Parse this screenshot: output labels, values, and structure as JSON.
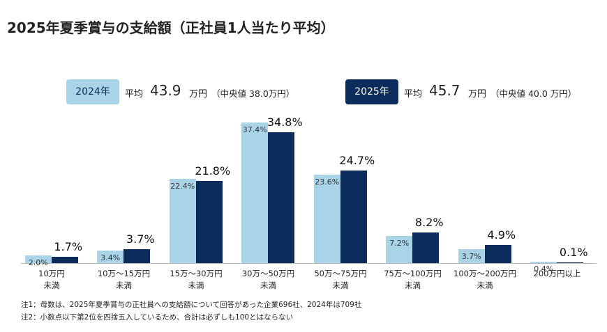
{
  "chart_data": {
    "type": "bar",
    "title": "2025年夏季賞与の支給額（正社員1人当たり平均）",
    "categories": [
      "10万円\n未満",
      "10万～15万円\n未満",
      "15万～30万円\n未満",
      "30万～50万円\n未満",
      "50万～75万円\n未満",
      "75万～100万円\n未満",
      "100万～200万円\n未満",
      "200万円以上"
    ],
    "series": [
      {
        "name": "2024年",
        "color": "#a9d3e7",
        "mean_prefix": "平均",
        "mean": "43.9",
        "mean_unit": "万円",
        "median_note": "（中央値 38.0万円）",
        "values": [
          2.0,
          3.4,
          22.4,
          37.4,
          23.6,
          7.2,
          3.7,
          0.4
        ],
        "value_labels": [
          "2.0%",
          "3.4%",
          "22.4%",
          "37.4%",
          "23.6%",
          "7.2%",
          "3.7%",
          "0.4%"
        ]
      },
      {
        "name": "2025年",
        "color": "#0c2d5c",
        "mean_prefix": "平均",
        "mean": "45.7",
        "mean_unit": "万円",
        "median_note": "（中央値 40.0 万円）",
        "values": [
          1.7,
          3.7,
          21.8,
          34.8,
          24.7,
          8.2,
          4.9,
          0.1
        ],
        "value_labels": [
          "1.7%",
          "3.7%",
          "21.8%",
          "34.8%",
          "24.7%",
          "8.2%",
          "4.9%",
          "0.1%"
        ]
      }
    ],
    "notes": [
      "注1：母数は、2025年夏季賞与の正社員への支給額について回答があった企業696社、2024年は709社",
      "注2：小数点以下第2位を四捨五入しているため、合計は必ずしも100とはならない"
    ]
  }
}
